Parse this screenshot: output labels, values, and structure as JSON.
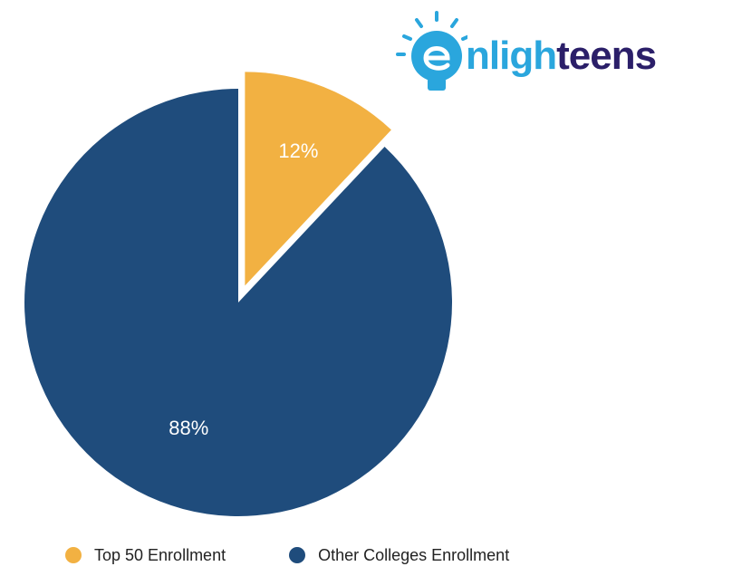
{
  "logo": {
    "text_part1": "nligh",
    "text_part2": "teens",
    "icon": "lightbulb-e-icon",
    "colors": {
      "primary": "#2aa6dd",
      "secondary": "#2b1f69"
    }
  },
  "chart_data": {
    "type": "pie",
    "title": "",
    "slices": [
      {
        "label": "Top 50 Enrollment",
        "value": 12,
        "display": "12%",
        "color": "#f2b142",
        "exploded": true
      },
      {
        "label": "Other Colleges Enrollment",
        "value": 88,
        "display": "88%",
        "color": "#1f4c7c",
        "exploded": false
      }
    ],
    "start_angle_deg": 0,
    "direction": "clockwise",
    "legend_position": "bottom-left"
  }
}
